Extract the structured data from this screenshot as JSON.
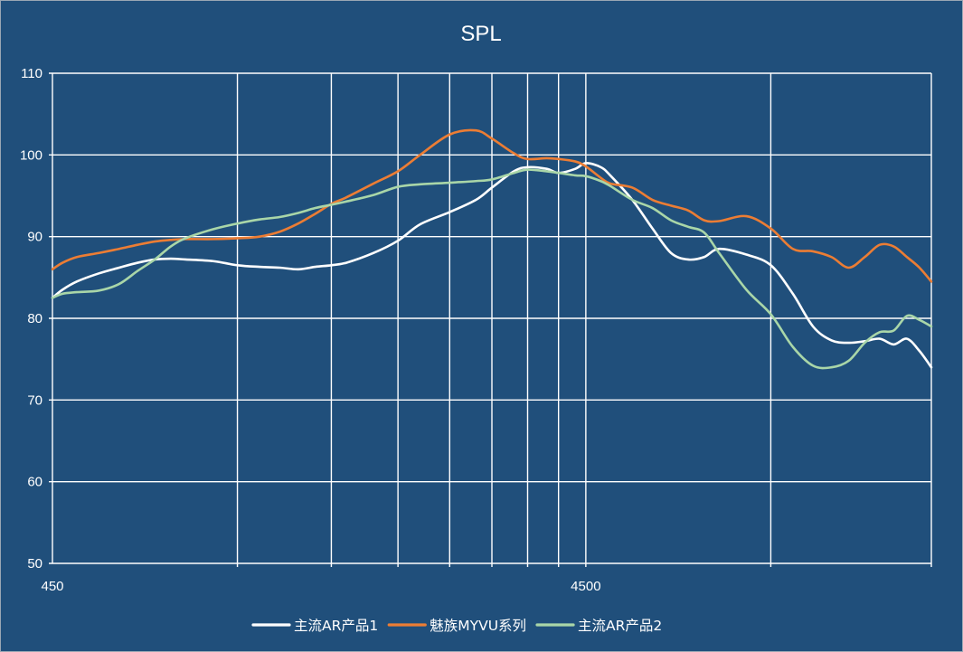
{
  "chart_data": {
    "type": "line",
    "title": "SPL",
    "xlabel": "",
    "ylabel": "",
    "x_scale": "log",
    "xlim": [
      450,
      20000
    ],
    "ylim": [
      50,
      110
    ],
    "y_ticks": [
      50,
      60,
      70,
      80,
      90,
      100,
      110
    ],
    "x_tick_labels": [
      {
        "value": 450,
        "label": "450"
      },
      {
        "value": 4500,
        "label": "4500"
      }
    ],
    "x_gridlines": [
      1000,
      1500,
      2000,
      2500,
      3000,
      3500,
      4000,
      4500,
      10000,
      20000
    ],
    "legend_position": "bottom-center",
    "series": [
      {
        "name": "主流AR产品1",
        "color": "#ffffff",
        "x": [
          450,
          470,
          500,
          550,
          600,
          650,
          700,
          750,
          800,
          900,
          1000,
          1100,
          1200,
          1300,
          1400,
          1500,
          1600,
          1800,
          2000,
          2200,
          2500,
          2800,
          3000,
          3300,
          3500,
          3800,
          4000,
          4300,
          4500,
          4800,
          5000,
          5500,
          6000,
          6500,
          7000,
          7500,
          8000,
          9000,
          10000,
          11000,
          12000,
          13000,
          14000,
          15000,
          16000,
          17000,
          18000,
          19000,
          20000
        ],
        "y": [
          82.5,
          83.5,
          84.5,
          85.5,
          86.2,
          86.8,
          87.2,
          87.3,
          87.2,
          87.0,
          86.5,
          86.3,
          86.2,
          86.0,
          86.3,
          86.5,
          86.8,
          88.0,
          89.5,
          91.5,
          93.0,
          94.5,
          96.0,
          98.0,
          98.5,
          98.3,
          97.8,
          98.3,
          99.0,
          98.5,
          97.5,
          94.5,
          91.0,
          88.0,
          87.2,
          87.5,
          88.5,
          87.8,
          86.5,
          83.0,
          79.0,
          77.3,
          77.0,
          77.2,
          77.5,
          76.8,
          77.5,
          76.0,
          74.0
        ]
      },
      {
        "name": "魅族MYVU系列",
        "color": "#ec7d34",
        "x": [
          450,
          470,
          500,
          550,
          600,
          650,
          700,
          750,
          800,
          900,
          1000,
          1100,
          1200,
          1300,
          1400,
          1500,
          1600,
          1800,
          2000,
          2200,
          2500,
          2800,
          3000,
          3300,
          3500,
          3800,
          4000,
          4300,
          4500,
          4800,
          5000,
          5500,
          6000,
          6500,
          7000,
          7500,
          8000,
          9000,
          10000,
          11000,
          12000,
          13000,
          14000,
          15000,
          16000,
          17000,
          18000,
          19000,
          20000
        ],
        "y": [
          86.0,
          86.8,
          87.5,
          88.0,
          88.5,
          89.0,
          89.4,
          89.6,
          89.7,
          89.7,
          89.8,
          90.0,
          90.6,
          91.6,
          92.8,
          94.0,
          94.8,
          96.5,
          98.0,
          100.0,
          102.5,
          103.0,
          102.0,
          100.2,
          99.5,
          99.6,
          99.5,
          99.2,
          98.6,
          97.2,
          96.5,
          96.0,
          94.5,
          93.8,
          93.2,
          92.0,
          91.9,
          92.5,
          91.0,
          88.5,
          88.2,
          87.5,
          86.2,
          87.5,
          89.0,
          88.8,
          87.5,
          86.2,
          84.5
        ]
      },
      {
        "name": "主流AR产品2",
        "color": "#a9d6a8",
        "x": [
          450,
          470,
          500,
          550,
          600,
          650,
          700,
          750,
          800,
          900,
          1000,
          1100,
          1200,
          1300,
          1400,
          1500,
          1600,
          1800,
          2000,
          2200,
          2500,
          2800,
          3000,
          3300,
          3500,
          3800,
          4000,
          4300,
          4500,
          4800,
          5000,
          5500,
          6000,
          6500,
          7000,
          7500,
          8000,
          9000,
          10000,
          11000,
          12000,
          13000,
          14000,
          15000,
          16000,
          17000,
          18000,
          19000,
          20000
        ],
        "y": [
          82.5,
          83.0,
          83.2,
          83.4,
          84.2,
          85.8,
          87.2,
          88.8,
          89.8,
          90.9,
          91.6,
          92.1,
          92.4,
          92.9,
          93.5,
          93.9,
          94.3,
          95.1,
          96.1,
          96.4,
          96.6,
          96.8,
          97.0,
          97.8,
          98.2,
          98.0,
          97.8,
          97.5,
          97.4,
          96.8,
          96.2,
          94.5,
          93.5,
          92.0,
          91.2,
          90.5,
          88.0,
          83.5,
          80.5,
          76.5,
          74.2,
          74.0,
          74.8,
          77.0,
          78.3,
          78.5,
          80.3,
          79.8,
          79.0
        ]
      }
    ]
  }
}
